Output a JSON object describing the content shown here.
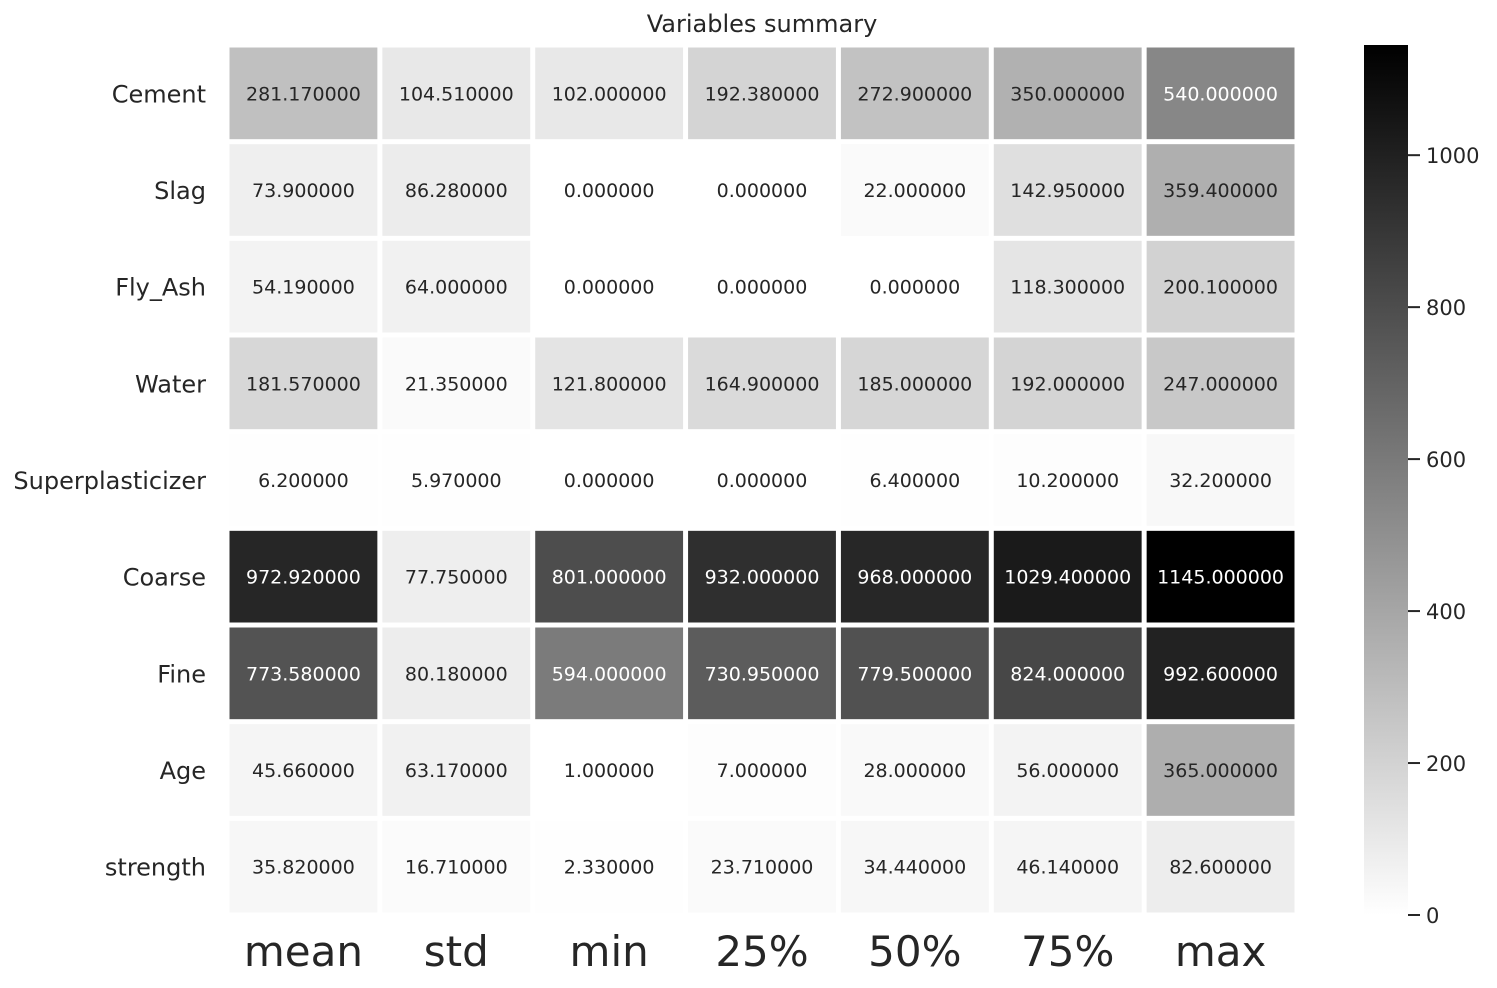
{
  "chart_data": {
    "type": "heatmap",
    "title": "Variables summary",
    "rows": [
      "Cement",
      "Slag",
      "Fly_Ash",
      "Water",
      "Superplasticizer",
      "Coarse",
      "Fine",
      "Age",
      "strength"
    ],
    "columns": [
      "mean",
      "std",
      "min",
      "25%",
      "50%",
      "75%",
      "max"
    ],
    "values": [
      [
        281.17,
        104.51,
        102.0,
        192.38,
        272.9,
        350.0,
        540.0
      ],
      [
        73.9,
        86.28,
        0.0,
        0.0,
        22.0,
        142.95,
        359.4
      ],
      [
        54.19,
        64.0,
        0.0,
        0.0,
        0.0,
        118.3,
        200.1
      ],
      [
        181.57,
        21.35,
        121.8,
        164.9,
        185.0,
        192.0,
        247.0
      ],
      [
        6.2,
        5.97,
        0.0,
        0.0,
        6.4,
        10.2,
        32.2
      ],
      [
        972.92,
        77.75,
        801.0,
        932.0,
        968.0,
        1029.4,
        1145.0
      ],
      [
        773.58,
        80.18,
        594.0,
        730.95,
        779.5,
        824.0,
        992.6
      ],
      [
        45.66,
        63.17,
        1.0,
        7.0,
        28.0,
        56.0,
        365.0
      ],
      [
        35.82,
        16.71,
        2.33,
        23.71,
        34.44,
        46.14,
        82.6
      ]
    ],
    "value_labels": [
      [
        "281.170000",
        "104.510000",
        "102.000000",
        "192.380000",
        "272.900000",
        "350.000000",
        "540.000000"
      ],
      [
        "73.900000",
        "86.280000",
        "0.000000",
        "0.000000",
        "22.000000",
        "142.950000",
        "359.400000"
      ],
      [
        "54.190000",
        "64.000000",
        "0.000000",
        "0.000000",
        "0.000000",
        "118.300000",
        "200.100000"
      ],
      [
        "181.570000",
        "21.350000",
        "121.800000",
        "164.900000",
        "185.000000",
        "192.000000",
        "247.000000"
      ],
      [
        "6.200000",
        "5.970000",
        "0.000000",
        "0.000000",
        "6.400000",
        "10.200000",
        "32.200000"
      ],
      [
        "972.920000",
        "77.750000",
        "801.000000",
        "932.000000",
        "968.000000",
        "1029.400000",
        "1145.000000"
      ],
      [
        "773.580000",
        "80.180000",
        "594.000000",
        "730.950000",
        "779.500000",
        "824.000000",
        "992.600000"
      ],
      [
        "45.660000",
        "63.170000",
        "1.000000",
        "7.000000",
        "28.000000",
        "56.000000",
        "365.000000"
      ],
      [
        "35.820000",
        "16.710000",
        "2.330000",
        "23.710000",
        "34.440000",
        "46.140000",
        "82.600000"
      ]
    ],
    "colorscale": {
      "low": "#ffffff",
      "high": "#000000",
      "min": 0,
      "max": 1145
    },
    "colorbar_ticks": [
      0,
      200,
      400,
      600,
      800,
      1000
    ],
    "colorbar_tick_labels": [
      "0",
      "200",
      "400",
      "600",
      "800",
      "1000"
    ],
    "grid": false
  }
}
